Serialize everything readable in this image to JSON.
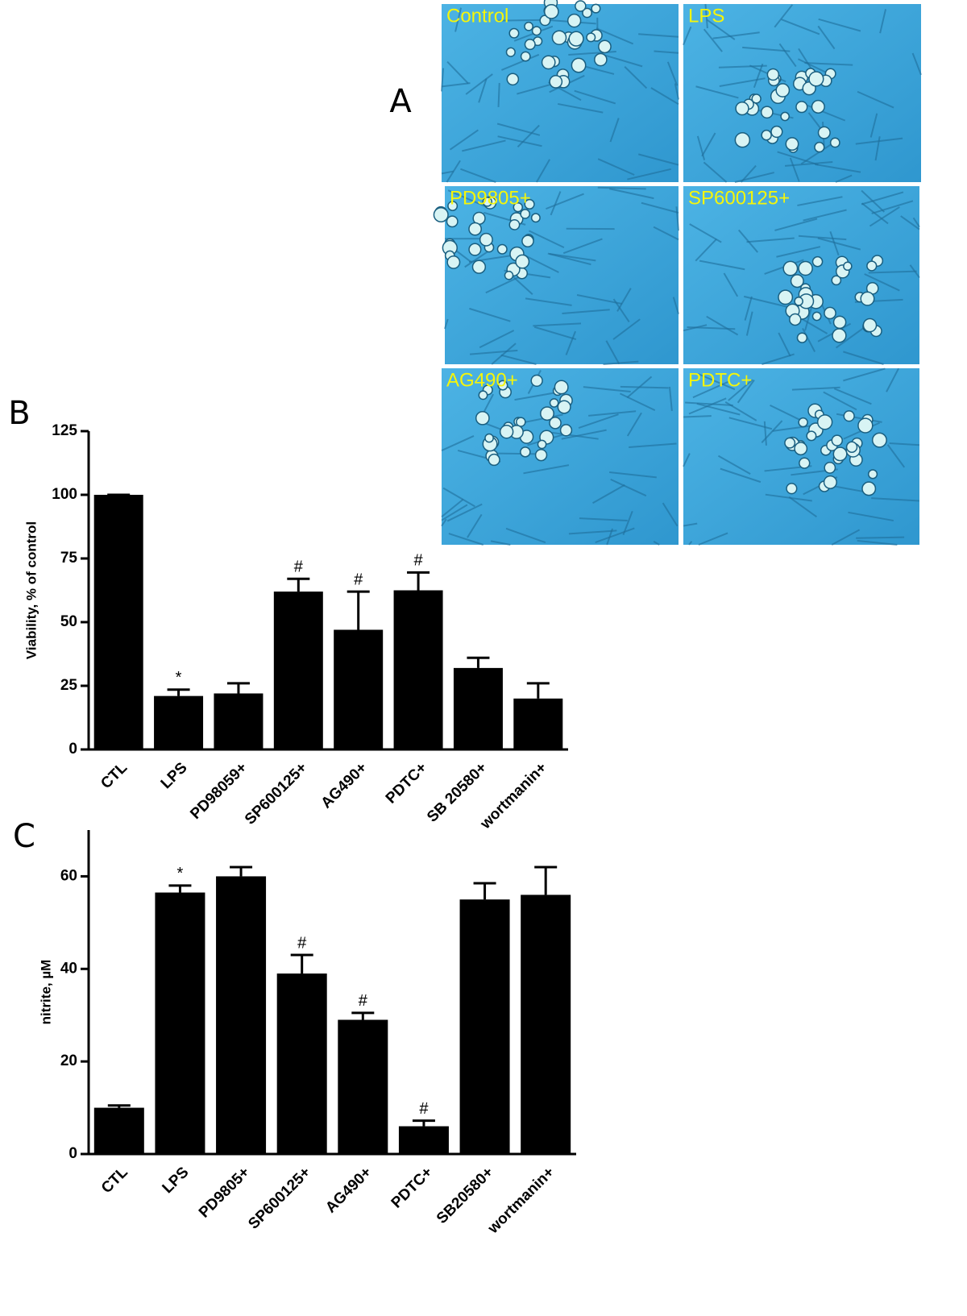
{
  "panel_labels": [
    "A",
    "B",
    "C"
  ],
  "micrographs": [
    "Control",
    "LPS",
    "PD9805+",
    "SP600125+",
    "AG490+",
    "PDTC+"
  ],
  "chart_data": [
    {
      "type": "bar",
      "y_label": "Viability, % of control",
      "categories": [
        "CTL",
        "LPS",
        "PD98059+",
        "SP600125+",
        "AG490+",
        "PDTC+",
        "SB 20580+",
        "wortmanin+"
      ],
      "values": [
        100,
        21,
        22,
        62,
        47,
        62.5,
        32,
        20
      ],
      "errors": [
        0,
        2.5,
        4,
        5,
        15,
        7,
        4,
        6
      ],
      "significance": [
        null,
        "*",
        null,
        "#",
        "#",
        "#",
        null,
        null
      ],
      "color": "#000000",
      "ylim": [
        0,
        125
      ],
      "yticks": [
        0,
        25,
        50,
        75,
        100,
        125
      ]
    },
    {
      "type": "bar",
      "y_label": "nitrite, µM",
      "categories": [
        "CTL",
        "LPS",
        "PD9805+",
        "SP600125+",
        "AG490+",
        "PDTC+",
        "SB20580+",
        "wortmanin+"
      ],
      "values": [
        10,
        56.5,
        60,
        39,
        29,
        6,
        55,
        56
      ],
      "errors": [
        0.5,
        1.5,
        2,
        4,
        1.5,
        1.2,
        3.5,
        6
      ],
      "significance": [
        null,
        "*",
        null,
        "#",
        "#",
        "#",
        null,
        null
      ],
      "color": "#000000",
      "ylim": [
        0,
        70
      ],
      "yticks": [
        0,
        20,
        40,
        60
      ]
    }
  ]
}
